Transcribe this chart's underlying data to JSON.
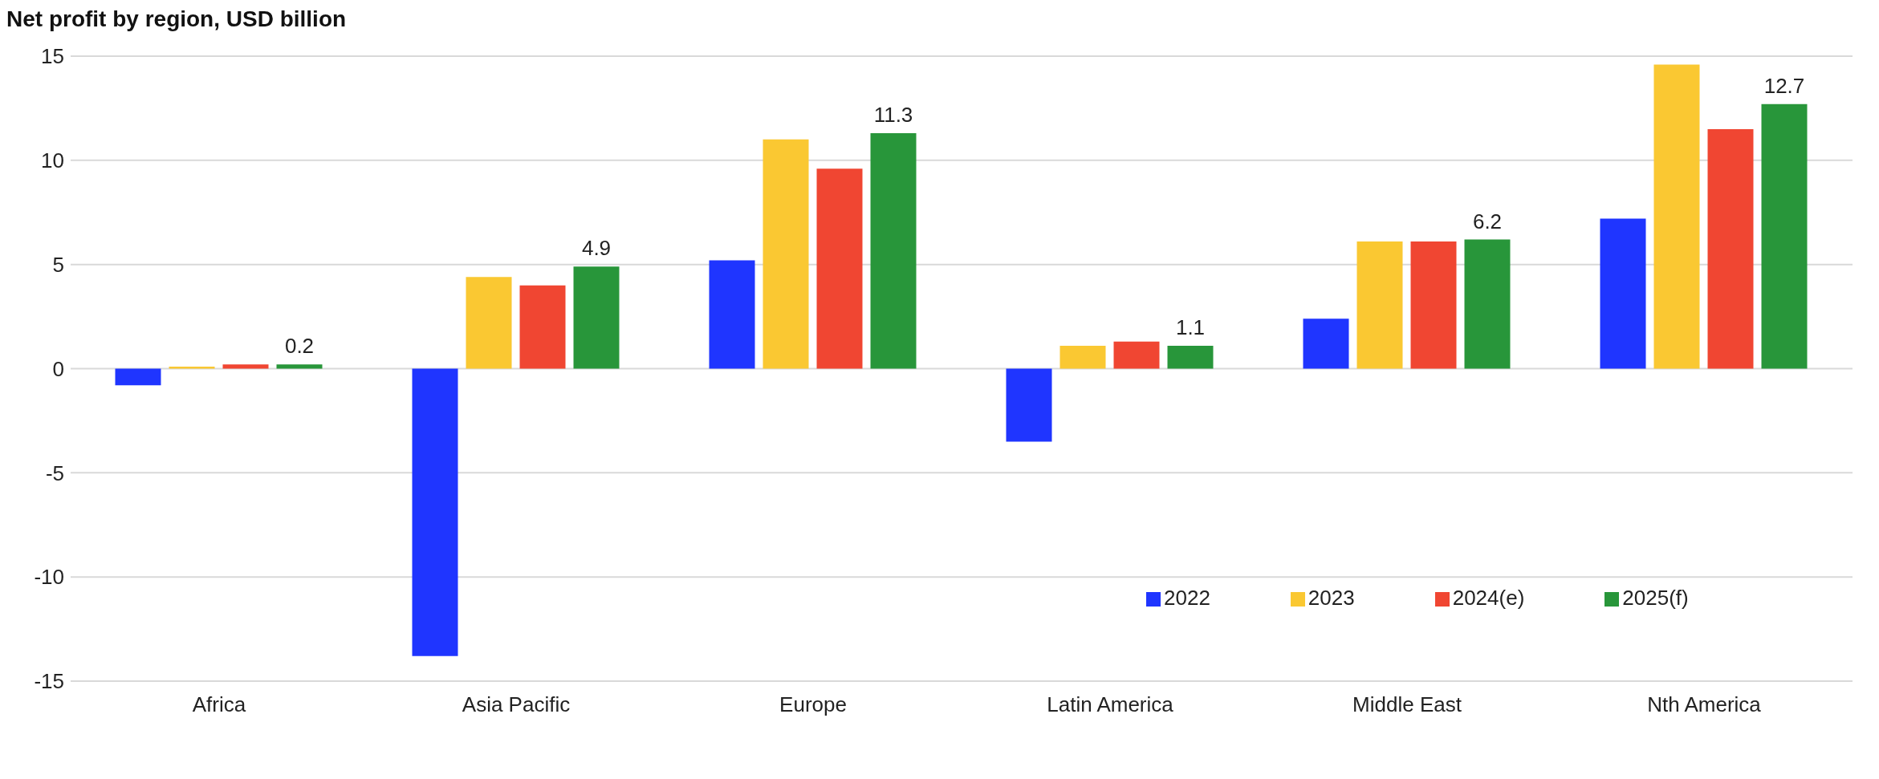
{
  "chart_data": {
    "type": "bar",
    "title": "Net profit by region, USD billion",
    "categories": [
      "Africa",
      "Asia Pacific",
      "Europe",
      "Latin America",
      "Middle East",
      "Nth America"
    ],
    "series": [
      {
        "name": "2022",
        "color": "#1f35ff",
        "values": [
          -0.8,
          -13.8,
          5.2,
          -3.5,
          2.4,
          7.2
        ]
      },
      {
        "name": "2023",
        "color": "#fac832",
        "values": [
          0.1,
          4.4,
          11.0,
          1.1,
          6.1,
          14.6
        ]
      },
      {
        "name": "2024(e)",
        "color": "#f04632",
        "values": [
          0.2,
          4.0,
          9.6,
          1.3,
          6.1,
          11.5
        ]
      },
      {
        "name": "2025(f)",
        "color": "#28963a",
        "values": [
          0.2,
          4.9,
          11.3,
          1.1,
          6.2,
          12.7
        ],
        "value_labels": [
          "0.2",
          "4.9",
          "11.3",
          "1.1",
          "6.2",
          "12.7"
        ]
      }
    ],
    "ylim": [
      -15,
      15
    ],
    "yticks": [
      -15,
      -10,
      -5,
      0,
      5,
      10,
      15
    ],
    "grid": "y",
    "legend": "bottom right"
  }
}
